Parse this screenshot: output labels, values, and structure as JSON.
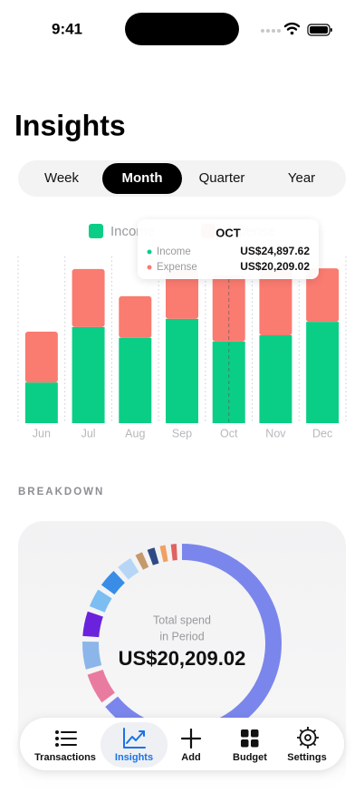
{
  "status_bar": {
    "time": "9:41"
  },
  "header": {
    "title": "Insights"
  },
  "period_tabs": {
    "items": [
      "Week",
      "Month",
      "Quarter",
      "Year"
    ],
    "selected": 1
  },
  "chart_data": {
    "type": "bar",
    "stacked": true,
    "categories": [
      "Jun",
      "Jul",
      "Aug",
      "Sep",
      "Oct",
      "Nov",
      "Dec"
    ],
    "series": [
      {
        "name": "Income",
        "color": "#0bce86",
        "values": [
          12400,
          29300,
          26000,
          31800,
          24897.62,
          26800,
          30900
        ]
      },
      {
        "name": "Expense",
        "color": "#fa7b70",
        "values": [
          15500,
          17700,
          12700,
          15200,
          20209.02,
          20200,
          16300
        ]
      }
    ],
    "ylim": [
      0,
      50000
    ],
    "highlight": 4
  },
  "tooltip": {
    "title": "OCT",
    "rows": [
      {
        "name": "Income",
        "value": "US$24,897.62"
      },
      {
        "name": "Expense",
        "value": "US$20,209.02"
      }
    ]
  },
  "breakdown": {
    "heading": "BREAKDOWN",
    "center_label": [
      "Total spend",
      "in Period"
    ],
    "total": "US$20,209.02",
    "segments": [
      {
        "color": "#7b86ec",
        "value": 64
      },
      {
        "color": "#ea7ba0",
        "value": 5
      },
      {
        "color": "#8cb6ea",
        "value": 4.5
      },
      {
        "color": "#6b22dd",
        "value": 4
      },
      {
        "color": "#7cbdf2",
        "value": 3
      },
      {
        "color": "#3a8de6",
        "value": 3
      },
      {
        "color": "#b7d6f6",
        "value": 2.5
      },
      {
        "color": "#c49a6c",
        "value": 1.2
      },
      {
        "color": "#2f4a84",
        "value": 1.2
      },
      {
        "color": "#f0a060",
        "value": 0.9
      },
      {
        "color": "#e06262",
        "value": 0.9
      }
    ]
  },
  "nav": {
    "items": [
      "Transactions",
      "Insights",
      "Add",
      "Budget",
      "Settings"
    ],
    "selected": 1
  }
}
